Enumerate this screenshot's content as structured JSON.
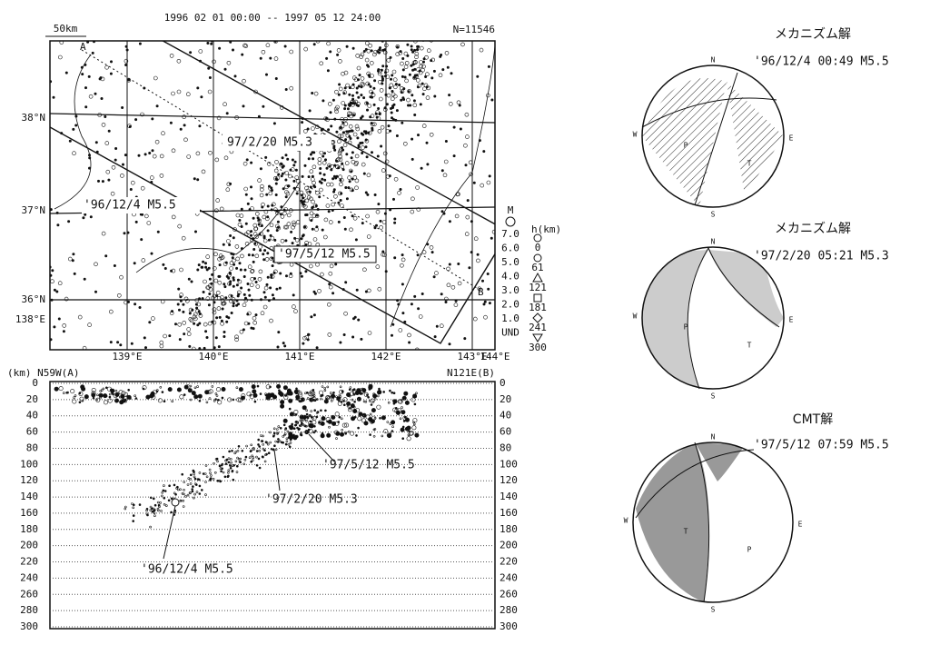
{
  "map": {
    "title": "1996 02 01 00:00 -- 1997 05 12 24:00",
    "scale": "50km",
    "count": "N=11546",
    "point_a": "A",
    "point_b": "B",
    "lat_labels": [
      "38°N",
      "37°N",
      "36°N",
      "138°E"
    ],
    "lon_labels": [
      "139°E",
      "140°E",
      "141°E",
      "142°E",
      "143°E",
      "144°E"
    ],
    "annotations": [
      "97/2/20 M5.3",
      "'96/12/4 M5.5",
      "'97/5/12 M5.5"
    ],
    "legend": {
      "mag_title": "M",
      "magnitudes": [
        "7.0",
        "6.0",
        "5.0",
        "4.0",
        "3.0",
        "2.0",
        "1.0",
        "UND"
      ],
      "depth_title": "h(km)",
      "depths": [
        "0",
        "61",
        "121",
        "181",
        "241",
        "300"
      ]
    }
  },
  "section": {
    "left_label": "(km) N59W(A)",
    "right_label": "N121E(B)",
    "depth_ticks": [
      0,
      20,
      40,
      60,
      80,
      100,
      120,
      140,
      160,
      180,
      200,
      220,
      240,
      260,
      280,
      300
    ],
    "annotations": [
      "'97/5/12 M5.5",
      "'97/2/20 M5.3",
      "'96/12/4 M5.5"
    ]
  },
  "mechanisms": [
    {
      "title": "メカニズム解",
      "caption": "'96/12/4 00:49 M5.5",
      "labels": [
        "N",
        "W",
        "E",
        "S",
        "P",
        "T"
      ]
    },
    {
      "title": "メカニズム解",
      "caption": "'97/2/20 05:21 M5.3",
      "labels": [
        "N",
        "W",
        "E",
        "S",
        "P",
        "T"
      ]
    },
    {
      "title": "CMT解",
      "caption": "'97/5/12 07:59 M5.5",
      "labels": [
        "N",
        "W",
        "E",
        "S",
        "T",
        "P"
      ]
    }
  ]
}
